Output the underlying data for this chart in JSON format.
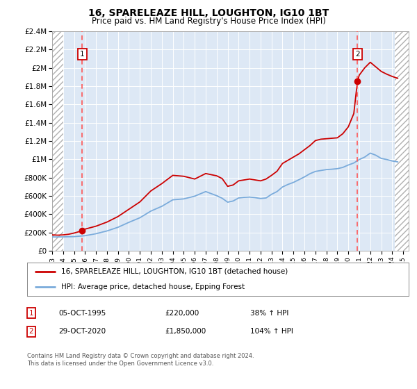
{
  "title": "16, SPARELEAZE HILL, LOUGHTON, IG10 1BT",
  "subtitle": "Price paid vs. HM Land Registry's House Price Index (HPI)",
  "ylim": [
    0,
    2400000
  ],
  "yticks": [
    0,
    200000,
    400000,
    600000,
    800000,
    1000000,
    1200000,
    1400000,
    1600000,
    1800000,
    2000000,
    2200000,
    2400000
  ],
  "ytick_labels": [
    "£0",
    "£200K",
    "£400K",
    "£600K",
    "£800K",
    "£1M",
    "£1.2M",
    "£1.4M",
    "£1.6M",
    "£1.8M",
    "£2M",
    "£2.2M",
    "£2.4M"
  ],
  "xlim_start": 1993.0,
  "xlim_end": 2025.5,
  "background_color": "#ffffff",
  "plot_bg_color": "#dde8f5",
  "grid_color": "#ffffff",
  "hatch_color": "#b0b0b0",
  "sale1_date": 1995.75,
  "sale1_price": 220000,
  "sale2_date": 2020.83,
  "sale2_price": 1850000,
  "red_line_color": "#cc0000",
  "blue_line_color": "#7aabdb",
  "dashed_line_color": "#ff5555",
  "legend_label1": "16, SPARELEAZE HILL, LOUGHTON, IG10 1BT (detached house)",
  "legend_label2": "HPI: Average price, detached house, Epping Forest",
  "annotation1_label": "1",
  "annotation2_label": "2",
  "annotation1_text": "05-OCT-1995",
  "annotation1_price": "£220,000",
  "annotation1_hpi": "38% ↑ HPI",
  "annotation2_text": "29-OCT-2020",
  "annotation2_price": "£1,850,000",
  "annotation2_hpi": "104% ↑ HPI",
  "footer": "Contains HM Land Registry data © Crown copyright and database right 2024.\nThis data is licensed under the Open Government Licence v3.0.",
  "hpi_red_x": [
    1993.0,
    1993.5,
    1994.0,
    1994.5,
    1995.0,
    1995.75,
    1996.0,
    1997.0,
    1998.0,
    1999.0,
    2000.0,
    2001.0,
    2002.0,
    2003.0,
    2004.0,
    2005.0,
    2006.0,
    2007.0,
    2008.0,
    2008.5,
    2009.0,
    2009.5,
    2010.0,
    2010.5,
    2011.0,
    2011.5,
    2012.0,
    2012.5,
    2013.0,
    2013.5,
    2014.0,
    2014.5,
    2015.0,
    2015.5,
    2016.0,
    2016.5,
    2017.0,
    2017.5,
    2018.0,
    2018.5,
    2019.0,
    2019.5,
    2020.0,
    2020.5,
    2020.83,
    2021.0,
    2021.5,
    2022.0,
    2022.5,
    2023.0,
    2023.5,
    2024.0,
    2024.5
  ],
  "hpi_red_y": [
    175000,
    172000,
    175000,
    182000,
    195000,
    220000,
    238000,
    270000,
    315000,
    375000,
    455000,
    535000,
    655000,
    735000,
    825000,
    815000,
    785000,
    845000,
    820000,
    790000,
    705000,
    720000,
    765000,
    775000,
    785000,
    775000,
    765000,
    785000,
    825000,
    870000,
    955000,
    990000,
    1025000,
    1060000,
    1105000,
    1150000,
    1205000,
    1220000,
    1225000,
    1230000,
    1235000,
    1280000,
    1355000,
    1500000,
    1850000,
    1920000,
    2000000,
    2060000,
    2010000,
    1960000,
    1930000,
    1905000,
    1885000
  ],
  "hpi_blue_x": [
    1993.0,
    1994.0,
    1995.0,
    1996.0,
    1997.0,
    1998.0,
    1999.0,
    2000.0,
    2001.0,
    2002.0,
    2003.0,
    2004.0,
    2005.0,
    2006.0,
    2007.0,
    2008.0,
    2008.5,
    2009.0,
    2009.5,
    2010.0,
    2010.5,
    2011.0,
    2011.5,
    2012.0,
    2012.5,
    2013.0,
    2013.5,
    2014.0,
    2014.5,
    2015.0,
    2015.5,
    2016.0,
    2016.5,
    2017.0,
    2017.5,
    2018.0,
    2018.5,
    2019.0,
    2019.5,
    2020.0,
    2020.5,
    2021.0,
    2021.5,
    2022.0,
    2022.5,
    2023.0,
    2023.5,
    2024.0,
    2024.5
  ],
  "hpi_blue_y": [
    152000,
    153000,
    156000,
    166000,
    188000,
    218000,
    258000,
    312000,
    362000,
    435000,
    487000,
    558000,
    568000,
    598000,
    648000,
    603000,
    575000,
    532000,
    545000,
    578000,
    585000,
    588000,
    582000,
    572000,
    578000,
    618000,
    648000,
    698000,
    726000,
    748000,
    778000,
    808000,
    843000,
    868000,
    878000,
    888000,
    892000,
    898000,
    912000,
    938000,
    960000,
    998000,
    1025000,
    1068000,
    1045000,
    1010000,
    998000,
    982000,
    972000
  ]
}
